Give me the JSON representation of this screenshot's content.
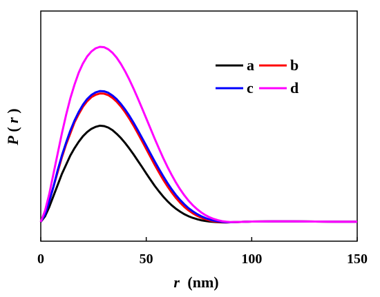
{
  "chart_data": {
    "type": "line",
    "xlabel_var": "r",
    "xlabel_unit": "(nm)",
    "ylabel_func": "P",
    "ylabel_open": "(",
    "ylabel_var": "r",
    "ylabel_close": ")",
    "xlim": [
      0,
      150
    ],
    "xticks": [
      0,
      50,
      100,
      150
    ],
    "xtick_labels": [
      "0",
      "50",
      "100",
      "150"
    ],
    "yticks_shown": false,
    "grid": false,
    "legend_position": "top-right",
    "series": [
      {
        "name": "a",
        "color": "#000000",
        "points": [
          [
            0,
            0.0
          ],
          [
            2,
            0.03
          ],
          [
            4,
            0.08
          ],
          [
            6,
            0.14
          ],
          [
            8,
            0.2
          ],
          [
            10,
            0.26
          ],
          [
            12,
            0.31
          ],
          [
            14,
            0.36
          ],
          [
            16,
            0.4
          ],
          [
            18,
            0.435
          ],
          [
            20,
            0.465
          ],
          [
            22,
            0.488
          ],
          [
            24,
            0.505
          ],
          [
            26,
            0.516
          ],
          [
            28,
            0.522
          ],
          [
            30,
            0.52
          ],
          [
            32,
            0.512
          ],
          [
            34,
            0.498
          ],
          [
            36,
            0.478
          ],
          [
            38,
            0.455
          ],
          [
            40,
            0.428
          ],
          [
            42,
            0.398
          ],
          [
            44,
            0.366
          ],
          [
            46,
            0.332
          ],
          [
            48,
            0.298
          ],
          [
            50,
            0.263
          ],
          [
            52,
            0.229
          ],
          [
            54,
            0.196
          ],
          [
            56,
            0.166
          ],
          [
            58,
            0.138
          ],
          [
            60,
            0.113
          ],
          [
            62,
            0.091
          ],
          [
            64,
            0.072
          ],
          [
            66,
            0.056
          ],
          [
            68,
            0.042
          ],
          [
            70,
            0.031
          ],
          [
            72,
            0.022
          ],
          [
            74,
            0.015
          ],
          [
            76,
            0.009
          ],
          [
            78,
            0.005
          ],
          [
            80,
            0.002
          ],
          [
            82,
            0.0
          ],
          [
            84,
            -0.002
          ],
          [
            86,
            -0.003
          ],
          [
            88,
            -0.003
          ],
          [
            90,
            -0.002
          ],
          [
            95,
            0.0
          ],
          [
            100,
            0.002
          ],
          [
            110,
            0.003
          ],
          [
            120,
            0.003
          ],
          [
            130,
            0.002
          ],
          [
            140,
            0.001
          ],
          [
            150,
            0.001
          ]
        ]
      },
      {
        "name": "b",
        "color": "#ff0000",
        "points": [
          [
            0,
            0.0
          ],
          [
            2,
            0.04
          ],
          [
            4,
            0.11
          ],
          [
            6,
            0.19
          ],
          [
            8,
            0.27
          ],
          [
            10,
            0.35
          ],
          [
            12,
            0.42
          ],
          [
            14,
            0.48
          ],
          [
            16,
            0.54
          ],
          [
            18,
            0.585
          ],
          [
            20,
            0.625
          ],
          [
            22,
            0.655
          ],
          [
            24,
            0.677
          ],
          [
            26,
            0.69
          ],
          [
            28,
            0.697
          ],
          [
            30,
            0.696
          ],
          [
            32,
            0.688
          ],
          [
            34,
            0.673
          ],
          [
            36,
            0.652
          ],
          [
            38,
            0.626
          ],
          [
            40,
            0.595
          ],
          [
            42,
            0.56
          ],
          [
            44,
            0.522
          ],
          [
            46,
            0.481
          ],
          [
            48,
            0.439
          ],
          [
            50,
            0.396
          ],
          [
            52,
            0.353
          ],
          [
            54,
            0.31
          ],
          [
            56,
            0.269
          ],
          [
            58,
            0.23
          ],
          [
            60,
            0.194
          ],
          [
            62,
            0.161
          ],
          [
            64,
            0.131
          ],
          [
            66,
            0.105
          ],
          [
            68,
            0.082
          ],
          [
            70,
            0.063
          ],
          [
            72,
            0.047
          ],
          [
            74,
            0.034
          ],
          [
            76,
            0.023
          ],
          [
            78,
            0.015
          ],
          [
            80,
            0.008
          ],
          [
            82,
            0.003
          ],
          [
            84,
            0.0
          ],
          [
            86,
            -0.002
          ],
          [
            88,
            -0.003
          ],
          [
            90,
            -0.002
          ],
          [
            95,
            0.0
          ],
          [
            100,
            0.002
          ],
          [
            110,
            0.003
          ],
          [
            120,
            0.003
          ],
          [
            130,
            0.002
          ],
          [
            140,
            0.001
          ],
          [
            150,
            0.001
          ]
        ]
      },
      {
        "name": "c",
        "color": "#0000ff",
        "points": [
          [
            0,
            0.0
          ],
          [
            2,
            0.04
          ],
          [
            4,
            0.11
          ],
          [
            6,
            0.19
          ],
          [
            8,
            0.28
          ],
          [
            10,
            0.36
          ],
          [
            12,
            0.43
          ],
          [
            14,
            0.495
          ],
          [
            16,
            0.55
          ],
          [
            18,
            0.597
          ],
          [
            20,
            0.636
          ],
          [
            22,
            0.667
          ],
          [
            24,
            0.689
          ],
          [
            26,
            0.703
          ],
          [
            28,
            0.71
          ],
          [
            30,
            0.709
          ],
          [
            32,
            0.701
          ],
          [
            34,
            0.686
          ],
          [
            36,
            0.666
          ],
          [
            38,
            0.64
          ],
          [
            40,
            0.61
          ],
          [
            42,
            0.576
          ],
          [
            44,
            0.538
          ],
          [
            46,
            0.498
          ],
          [
            48,
            0.456
          ],
          [
            50,
            0.414
          ],
          [
            52,
            0.371
          ],
          [
            54,
            0.329
          ],
          [
            56,
            0.288
          ],
          [
            58,
            0.249
          ],
          [
            60,
            0.212
          ],
          [
            62,
            0.178
          ],
          [
            64,
            0.147
          ],
          [
            66,
            0.12
          ],
          [
            68,
            0.096
          ],
          [
            70,
            0.075
          ],
          [
            72,
            0.058
          ],
          [
            74,
            0.043
          ],
          [
            76,
            0.031
          ],
          [
            78,
            0.021
          ],
          [
            80,
            0.013
          ],
          [
            82,
            0.007
          ],
          [
            84,
            0.003
          ],
          [
            86,
            0.0
          ],
          [
            88,
            -0.002
          ],
          [
            90,
            -0.002
          ],
          [
            95,
            0.0
          ],
          [
            100,
            0.002
          ],
          [
            110,
            0.003
          ],
          [
            120,
            0.003
          ],
          [
            130,
            0.002
          ],
          [
            140,
            0.001
          ],
          [
            150,
            0.001
          ]
        ]
      },
      {
        "name": "d",
        "color": "#ff00ff",
        "points": [
          [
            0,
            0.0
          ],
          [
            2,
            0.06
          ],
          [
            4,
            0.15
          ],
          [
            6,
            0.26
          ],
          [
            8,
            0.37
          ],
          [
            10,
            0.48
          ],
          [
            12,
            0.58
          ],
          [
            14,
            0.67
          ],
          [
            16,
            0.745
          ],
          [
            18,
            0.81
          ],
          [
            20,
            0.86
          ],
          [
            22,
            0.898
          ],
          [
            24,
            0.925
          ],
          [
            26,
            0.942
          ],
          [
            28,
            0.95
          ],
          [
            30,
            0.948
          ],
          [
            32,
            0.937
          ],
          [
            34,
            0.918
          ],
          [
            36,
            0.891
          ],
          [
            38,
            0.857
          ],
          [
            40,
            0.817
          ],
          [
            42,
            0.772
          ],
          [
            44,
            0.723
          ],
          [
            46,
            0.671
          ],
          [
            48,
            0.617
          ],
          [
            50,
            0.562
          ],
          [
            52,
            0.507
          ],
          [
            54,
            0.452
          ],
          [
            56,
            0.399
          ],
          [
            58,
            0.348
          ],
          [
            60,
            0.3
          ],
          [
            62,
            0.256
          ],
          [
            64,
            0.215
          ],
          [
            66,
            0.178
          ],
          [
            68,
            0.145
          ],
          [
            70,
            0.116
          ],
          [
            72,
            0.091
          ],
          [
            74,
            0.07
          ],
          [
            76,
            0.052
          ],
          [
            78,
            0.037
          ],
          [
            80,
            0.025
          ],
          [
            82,
            0.016
          ],
          [
            84,
            0.009
          ],
          [
            86,
            0.004
          ],
          [
            88,
            0.001
          ],
          [
            90,
            -0.001
          ],
          [
            95,
            0.0
          ],
          [
            100,
            0.002
          ],
          [
            110,
            0.003
          ],
          [
            120,
            0.003
          ],
          [
            130,
            0.002
          ],
          [
            140,
            0.001
          ],
          [
            150,
            0.001
          ]
        ]
      }
    ]
  }
}
